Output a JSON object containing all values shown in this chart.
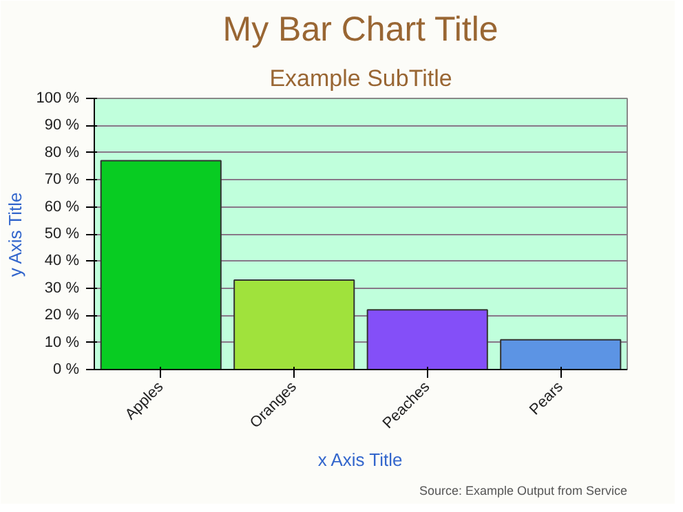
{
  "chart_data": {
    "type": "bar",
    "title": "My Bar Chart Title",
    "subtitle": "Example SubTitle",
    "xlabel": "x Axis Title",
    "ylabel": "y Axis Title",
    "categories": [
      "Apples",
      "Oranges",
      "Peaches",
      "Pears"
    ],
    "values": [
      77,
      33,
      22,
      11
    ],
    "colors": [
      "#08cc22",
      "#a0e23c",
      "#844ff8",
      "#5c94e4"
    ],
    "ylim": [
      0,
      100
    ],
    "yticks": [
      {
        "value": 0,
        "label": "0 %"
      },
      {
        "value": 10,
        "label": "10 %"
      },
      {
        "value": 20,
        "label": "20 %"
      },
      {
        "value": 30,
        "label": "30 %"
      },
      {
        "value": 40,
        "label": "40 %"
      },
      {
        "value": 50,
        "label": "50 %"
      },
      {
        "value": 60,
        "label": "60 %"
      },
      {
        "value": 70,
        "label": "70 %"
      },
      {
        "value": 80,
        "label": "80 %"
      },
      {
        "value": 90,
        "label": "90 %"
      },
      {
        "value": 100,
        "label": "100 %"
      }
    ],
    "grid": "y",
    "annotations": [
      "Source: Example Output from Service"
    ]
  }
}
